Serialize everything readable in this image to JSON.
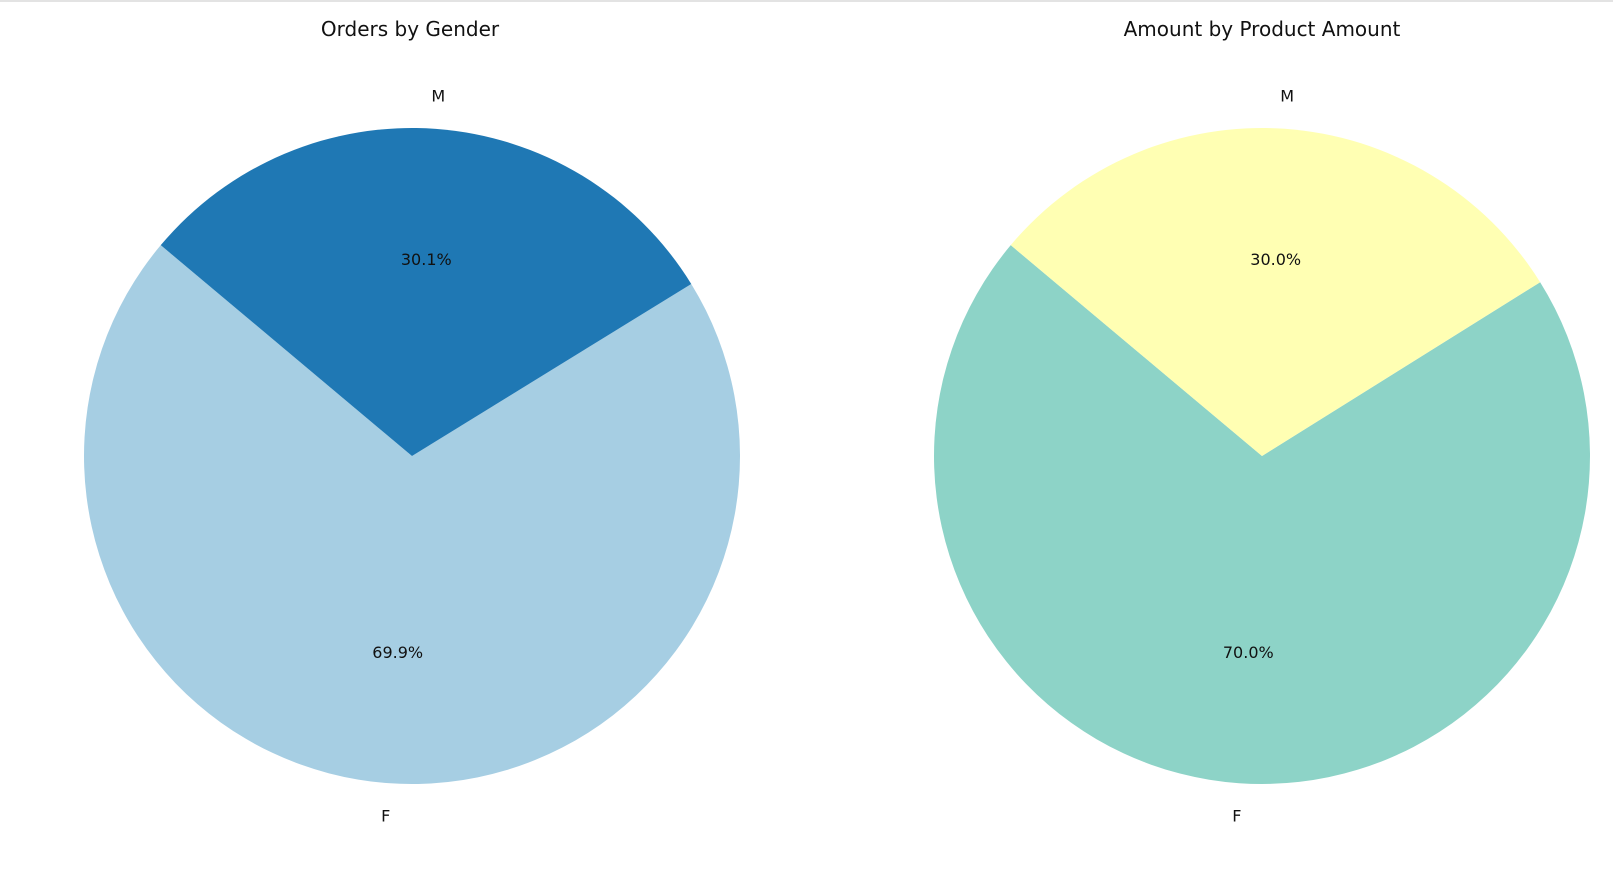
{
  "chart_data": [
    {
      "type": "pie",
      "title": "Orders by Gender",
      "categories": [
        "F",
        "M"
      ],
      "values": [
        69.9,
        30.1
      ],
      "value_labels": [
        "69.9%",
        "30.1%"
      ],
      "colors": [
        "#a6cee3",
        "#1f78b4"
      ],
      "start_angle": 140,
      "direction": "counterclockwise",
      "legend": "none"
    },
    {
      "type": "pie",
      "title": "Amount by Product Amount",
      "categories": [
        "F",
        "M"
      ],
      "values": [
        70.0,
        30.0
      ],
      "value_labels": [
        "70.0%",
        "30.0%"
      ],
      "colors": [
        "#8dd3c7",
        "#ffffb3"
      ],
      "start_angle": 140,
      "direction": "counterclockwise",
      "legend": "none"
    }
  ]
}
